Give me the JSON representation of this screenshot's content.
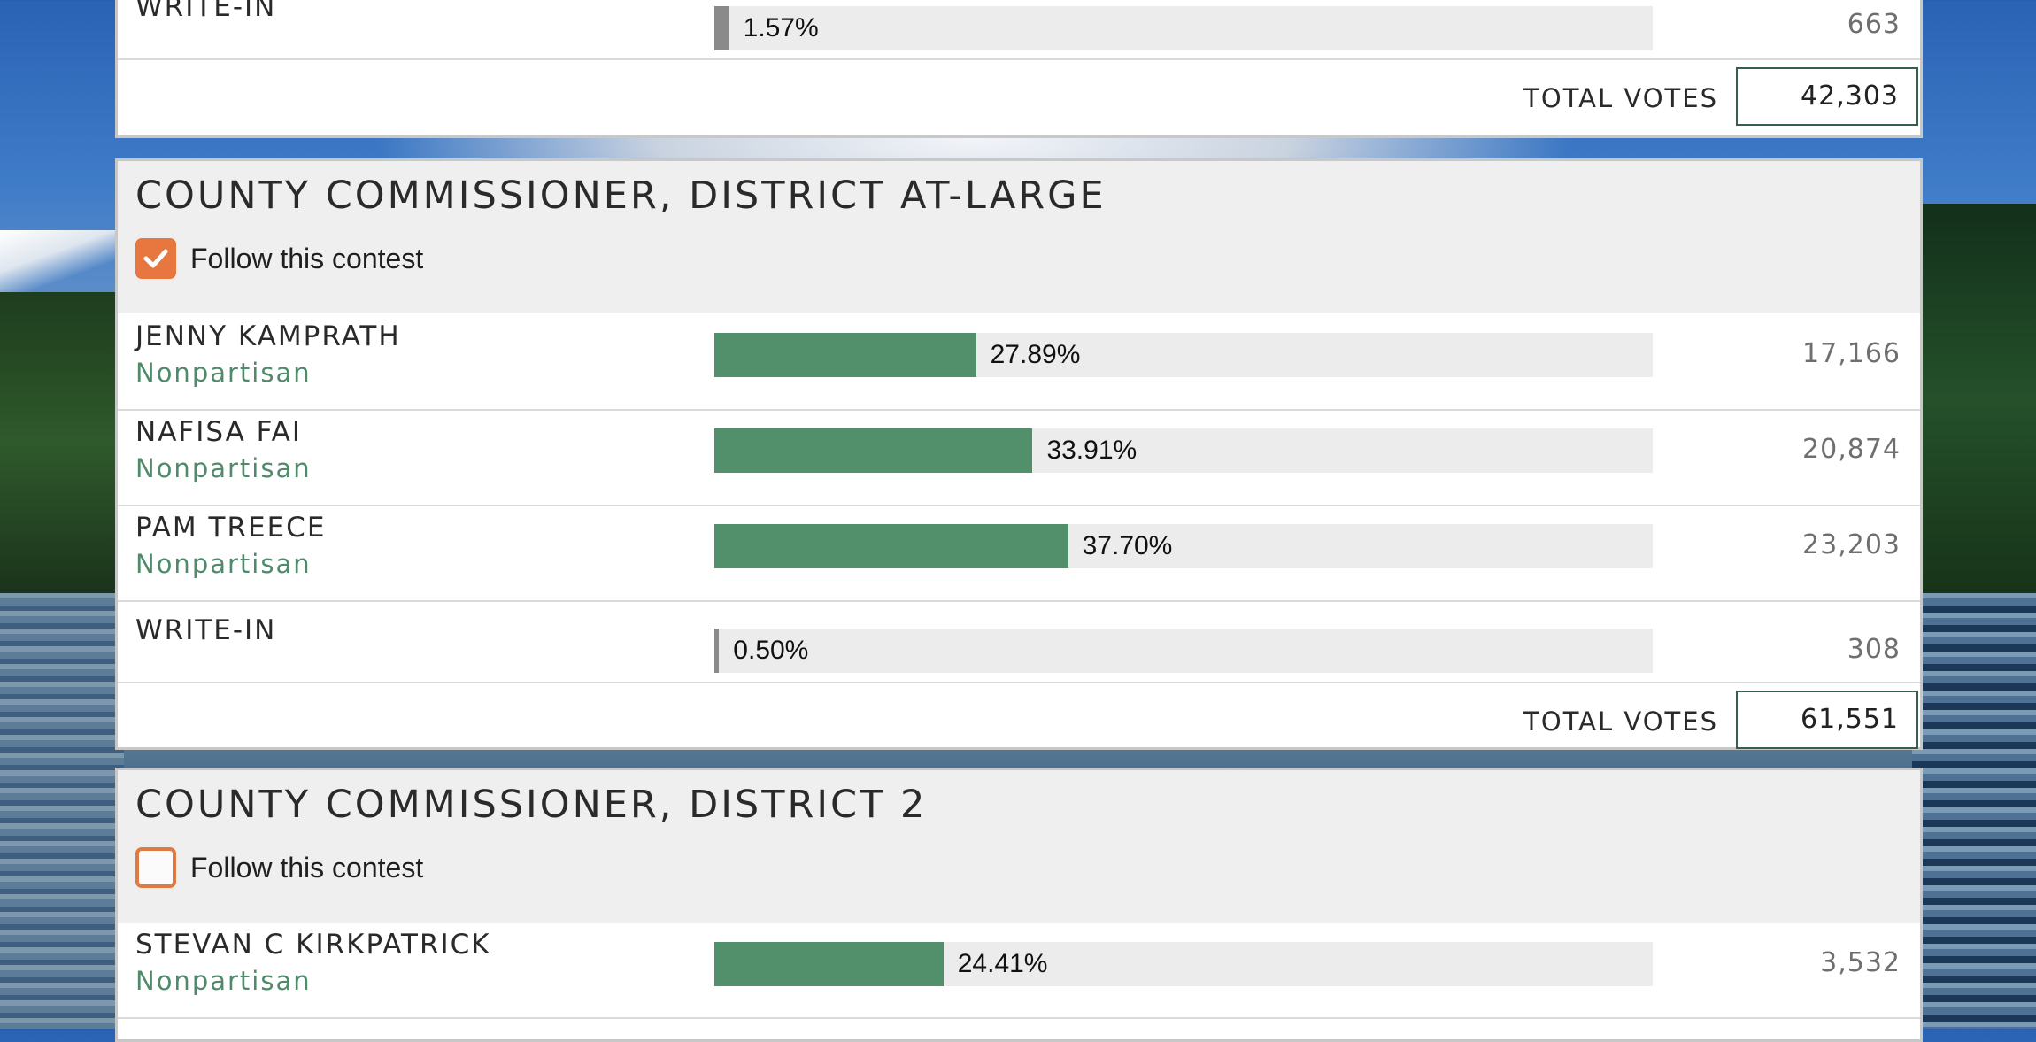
{
  "contests": [
    {
      "title": "",
      "rows": [
        {
          "name": "WRITE-IN",
          "party": "",
          "pct_label": "1.57%",
          "pct": 1.57,
          "votes": "663"
        }
      ],
      "total_label": "TOTAL VOTES",
      "total": "42,303"
    },
    {
      "title": "COUNTY COMMISSIONER, DISTRICT AT-LARGE",
      "follow_label": "Follow this contest",
      "followed": true,
      "rows": [
        {
          "name": "JENNY KAMPRATH",
          "party": "Nonpartisan",
          "pct_label": "27.89%",
          "pct": 27.89,
          "votes": "17,166"
        },
        {
          "name": "NAFISA FAI",
          "party": "Nonpartisan",
          "pct_label": "33.91%",
          "pct": 33.91,
          "votes": "20,874"
        },
        {
          "name": "PAM TREECE",
          "party": "Nonpartisan",
          "pct_label": "37.70%",
          "pct": 37.7,
          "votes": "23,203"
        },
        {
          "name": "WRITE-IN",
          "party": "",
          "pct_label": "0.50%",
          "pct": 0.5,
          "votes": "308"
        }
      ],
      "total_label": "TOTAL VOTES",
      "total": "61,551"
    },
    {
      "title": "COUNTY COMMISSIONER, DISTRICT 2",
      "follow_label": "Follow this contest",
      "followed": false,
      "rows": [
        {
          "name": "STEVAN C KIRKPATRICK",
          "party": "Nonpartisan",
          "pct_label": "24.41%",
          "pct": 24.41,
          "votes": "3,532"
        }
      ]
    }
  ],
  "colors": {
    "winner_bar": "#51906a",
    "writein_bar": "#8a8a8a",
    "party_text": "#4f8b6a",
    "checkbox": "#e8773f"
  },
  "icons": {
    "checked": "checkmark-icon"
  }
}
